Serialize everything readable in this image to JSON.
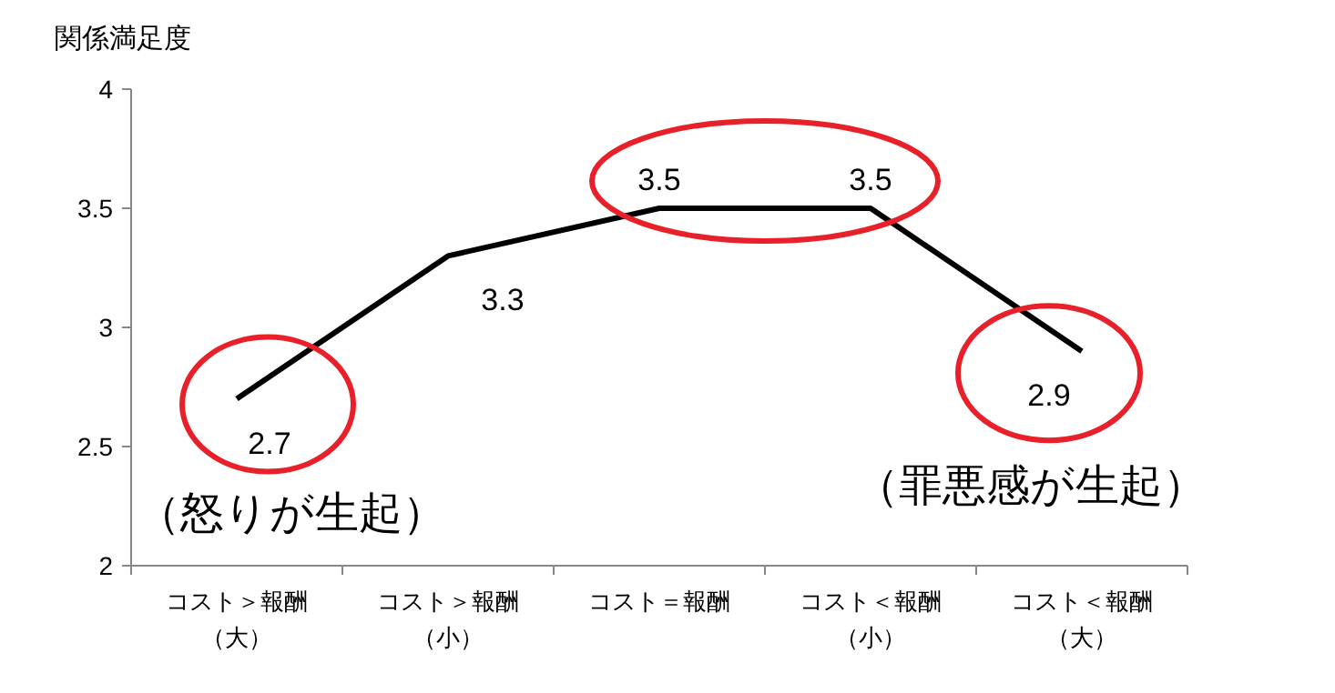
{
  "chart_data": {
    "type": "line",
    "ylabel": "関係満足度",
    "categories": [
      "コスト＞報酬（大）",
      "コスト＞報酬（小）",
      "コスト＝報酬",
      "コスト＜報酬（小）",
      "コスト＜報酬（大）"
    ],
    "series": [
      {
        "color": "#000000",
        "values": [
          2.7,
          3.3,
          3.5,
          3.5,
          2.9
        ]
      }
    ],
    "ylim": [
      2,
      4
    ],
    "yticks": [
      2,
      2.5,
      3,
      3.5,
      4
    ],
    "grid": false,
    "marker": "none",
    "line_style": "solid",
    "data_labels": true,
    "annotations": [
      "（怒りが生起）",
      "（罪悪感が生起）"
    ]
  }
}
